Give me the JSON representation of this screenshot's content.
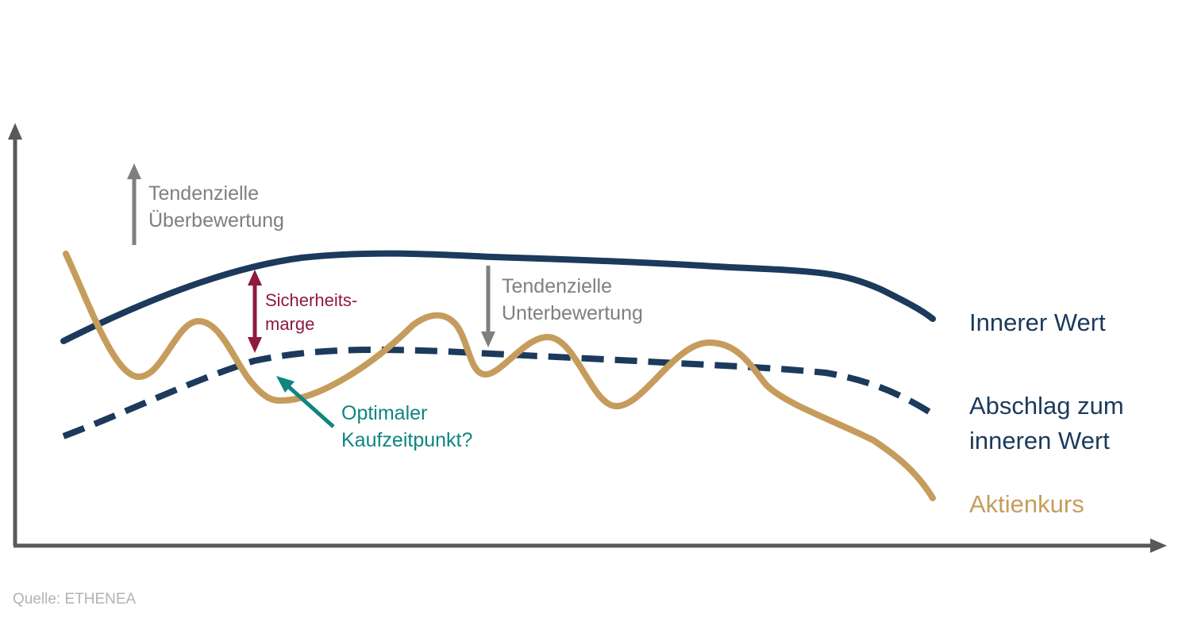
{
  "colors": {
    "axis": "#595959",
    "intrinsic_value": "#1b3a5c",
    "discount_line": "#1b3a5c",
    "share_price": "#c69c5d",
    "annotation_grey": "#7f7f7f",
    "safety_margin": "#8e1a3c",
    "optimal_point": "#0f8580",
    "source": "#b3b3b3"
  },
  "annotations": {
    "overvaluation": {
      "line1": "Tendenzielle",
      "line2": "Überbewertung"
    },
    "undervaluation": {
      "line1": "Tendenzielle",
      "line2": "Unterbewertung"
    },
    "safety_margin": {
      "line1": "Sicherheits-",
      "line2": "marge"
    },
    "optimal_buy": {
      "line1": "Optimaler",
      "line2": "Kaufzeitpunkt?"
    }
  },
  "legend": {
    "intrinsic_value": "Innerer Wert",
    "discount": {
      "line1": "Abschlag zum",
      "line2": "inneren Wert"
    },
    "share_price": "Aktienkurs"
  },
  "source": "Quelle: ETHENEA"
}
